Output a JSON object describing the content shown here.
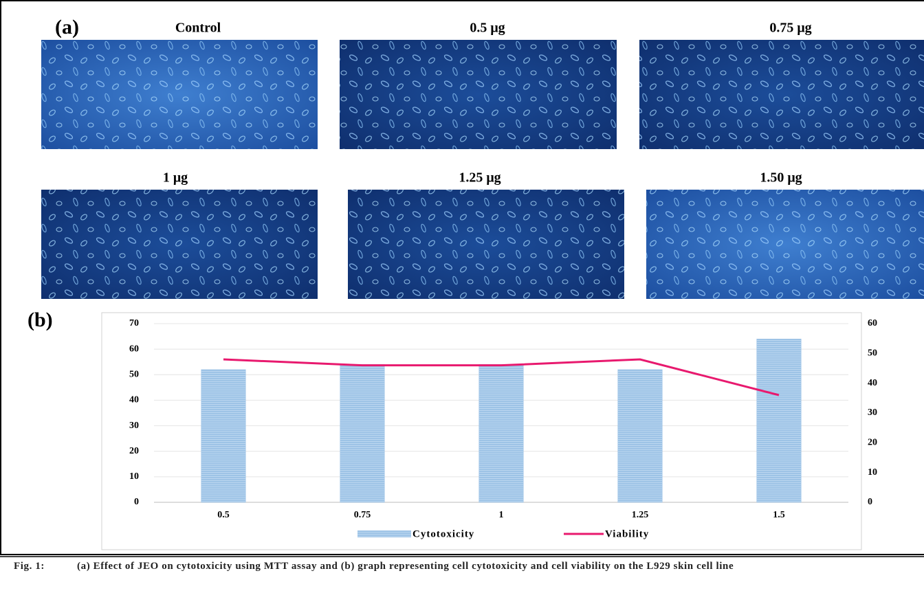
{
  "panel_a": {
    "label": "(a)",
    "images": [
      {
        "label": "Control"
      },
      {
        "label": "0.5 μg"
      },
      {
        "label": "0.75 μg"
      },
      {
        "label": "1 μg"
      },
      {
        "label": "1.25 μg"
      },
      {
        "label": "1.50 μg"
      }
    ]
  },
  "chart_data": {
    "type": "combo",
    "panel_label": "(b)",
    "categories": [
      "0.5",
      "0.75",
      "1",
      "1.25",
      "1.5"
    ],
    "series": [
      {
        "name": "Cytotoxicity",
        "type": "bar",
        "color": "#9dc3e6",
        "values": [
          52,
          54,
          54,
          52,
          64
        ]
      },
      {
        "name": "Viability",
        "type": "line",
        "axis": "y2",
        "color": "#e8196e",
        "values": [
          48,
          46,
          46,
          48,
          36
        ]
      }
    ],
    "ylim": [
      0,
      70
    ],
    "yticks": [
      0,
      10,
      20,
      30,
      40,
      50,
      60,
      70
    ],
    "y2lim": [
      0,
      60
    ],
    "y2ticks": [
      0,
      10,
      20,
      30,
      40,
      50,
      60
    ],
    "grid": true,
    "legend": "bottom"
  },
  "caption": {
    "label": "Fig. 1:",
    "text": "(a) Effect of JEO on cytotoxicity using MTT assay and (b) graph representing cell cytotoxicity and cell viability on the L929 skin cell line"
  }
}
